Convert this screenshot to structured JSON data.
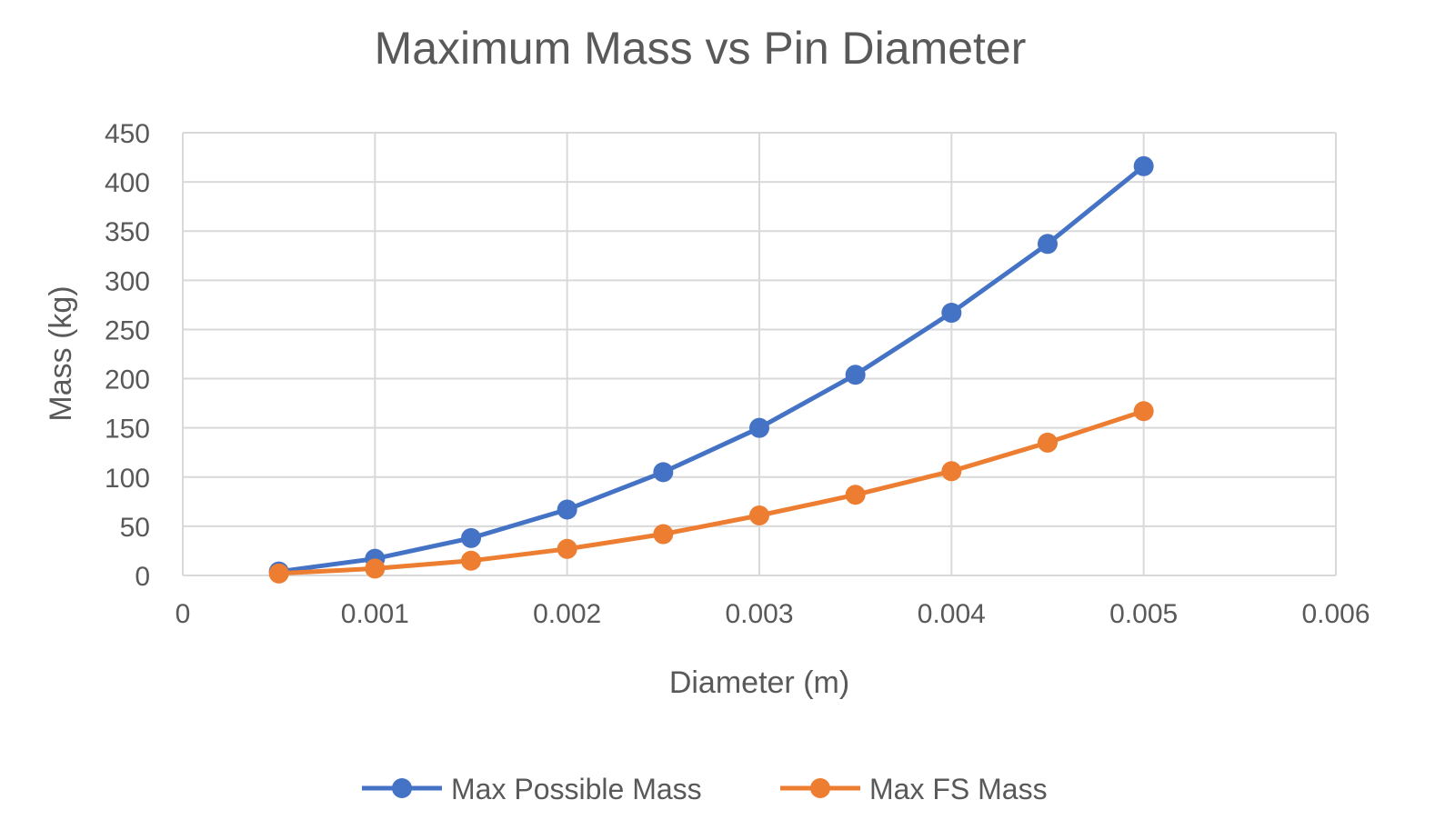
{
  "chart_data": {
    "type": "line",
    "title": "Maximum Mass vs Pin Diameter",
    "xlabel": "Diameter (m)",
    "ylabel": "Mass (kg)",
    "xlim": [
      0,
      0.006
    ],
    "ylim": [
      0,
      450
    ],
    "xticks": [
      "0",
      "0.001",
      "0.002",
      "0.003",
      "0.004",
      "0.005",
      "0.006"
    ],
    "yticks": [
      "0",
      "50",
      "100",
      "150",
      "200",
      "250",
      "300",
      "350",
      "400",
      "450"
    ],
    "grid": true,
    "legend_position": "bottom",
    "x": [
      0.0005,
      0.001,
      0.0015,
      0.002,
      0.0025,
      0.003,
      0.0035,
      0.004,
      0.0045,
      0.005
    ],
    "series": [
      {
        "name": "Max Possible Mass",
        "color": "#4472c4",
        "values": [
          4,
          17,
          38,
          67,
          105,
          150,
          204,
          267,
          337,
          416
        ]
      },
      {
        "name": "Max FS Mass",
        "color": "#ed7d31",
        "values": [
          2,
          7,
          15,
          27,
          42,
          61,
          82,
          106,
          135,
          167
        ]
      }
    ]
  }
}
